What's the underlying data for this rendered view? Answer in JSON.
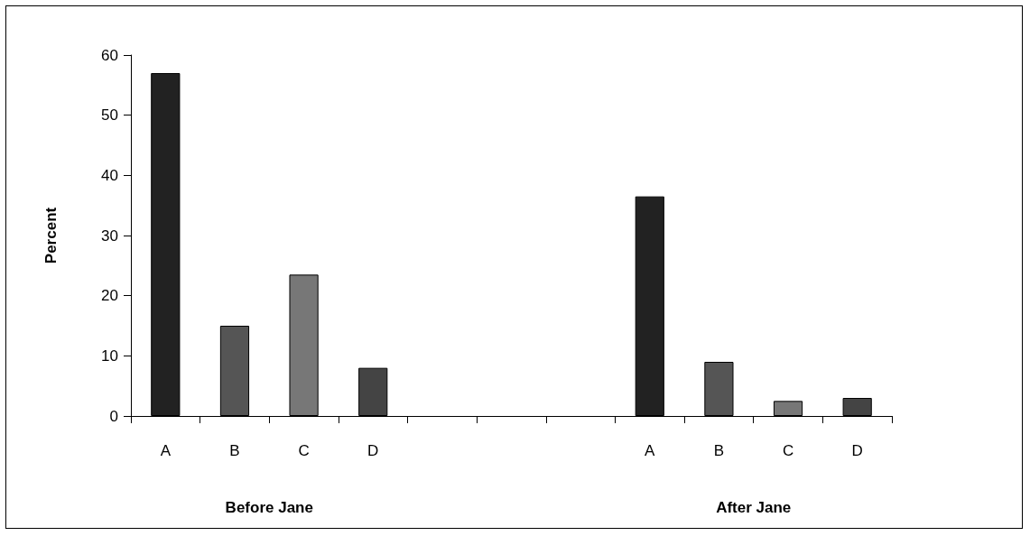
{
  "chart_data": {
    "type": "bar",
    "ylabel": "Percent",
    "categories": [
      "A",
      "B",
      "C",
      "D",
      null,
      null,
      null,
      "A",
      "B",
      "C",
      "D"
    ],
    "values": [
      57,
      15,
      23.5,
      8,
      null,
      null,
      null,
      36.5,
      9,
      2.5,
      3
    ],
    "colors": [
      "#222222",
      "#555555",
      "#777777",
      "#444444",
      "#000000",
      "#000000",
      "#000000",
      "#222222",
      "#555555",
      "#777777",
      "#444444"
    ],
    "ylim": [
      0,
      60
    ],
    "yticks": [
      0,
      10,
      20,
      30,
      40,
      50,
      60
    ],
    "grid": false,
    "annotations": [
      "Before Jane",
      "After Jane"
    ]
  }
}
